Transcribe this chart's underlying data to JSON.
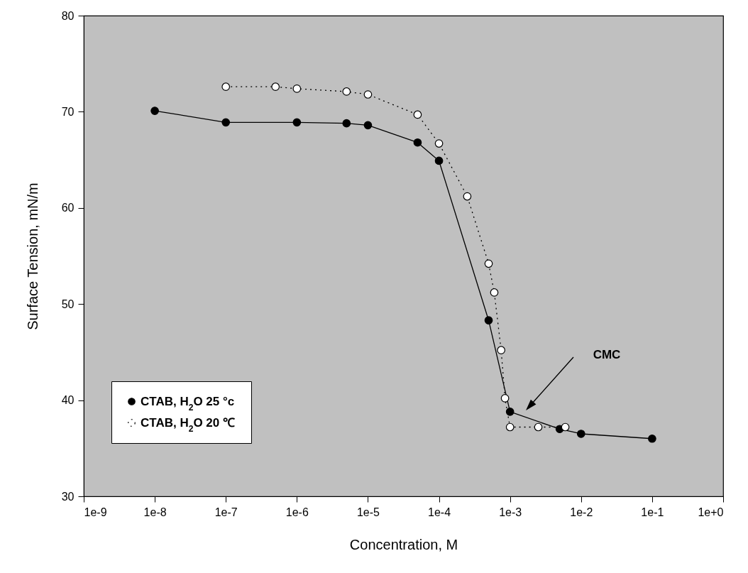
{
  "chart_data": {
    "type": "line",
    "xlabel": "Concentration, M",
    "ylabel": "Surface Tension, mN/m",
    "log": "x",
    "xlim": [
      1e-09,
      1
    ],
    "ylim": [
      30,
      80
    ],
    "xticks": [
      {
        "value": 1e-09,
        "label": "1e-9"
      },
      {
        "value": 1e-08,
        "label": "1e-8"
      },
      {
        "value": 1e-07,
        "label": "1e-7"
      },
      {
        "value": 1e-06,
        "label": "1e-6"
      },
      {
        "value": 1e-05,
        "label": "1e-5"
      },
      {
        "value": 0.0001,
        "label": "1e-4"
      },
      {
        "value": 0.001,
        "label": "1e-3"
      },
      {
        "value": 0.01,
        "label": "1e-2"
      },
      {
        "value": 0.1,
        "label": "1e-1"
      },
      {
        "value": 1,
        "label": "1e+0"
      }
    ],
    "yticks": [
      30,
      40,
      50,
      60,
      70,
      80
    ],
    "grid": false,
    "legend": "bottom left",
    "marker": "circle",
    "series": [
      {
        "name": "CTAB, H$_{2}$O 25 °c",
        "color": "#000000",
        "line_style": "solid",
        "x": [
          1e-08,
          1e-07,
          1e-06,
          5e-06,
          1e-05,
          5e-05,
          0.0001,
          0.0005,
          0.001,
          0.005,
          0.01,
          0.1
        ],
        "values": [
          70.1,
          68.9,
          68.9,
          68.8,
          68.6,
          66.8,
          64.9,
          48.3,
          38.8,
          37.0,
          36.5,
          36.0
        ]
      },
      {
        "name": "CTAB, H$_{2}$O 20 ℃",
        "color": "#ffffff",
        "line_style": "dotted",
        "x": [
          1e-07,
          5e-07,
          1e-06,
          5e-06,
          1e-05,
          5e-05,
          0.0001,
          0.00025,
          0.0005,
          0.0006,
          0.00075,
          0.00085,
          0.001,
          0.0025,
          0.006
        ],
        "values": [
          72.6,
          72.6,
          72.4,
          72.1,
          71.8,
          69.7,
          66.7,
          61.2,
          54.2,
          51.2,
          45.2,
          40.2,
          37.2,
          37.2,
          37.2
        ]
      }
    ],
    "annotations": [
      "CMC"
    ]
  }
}
